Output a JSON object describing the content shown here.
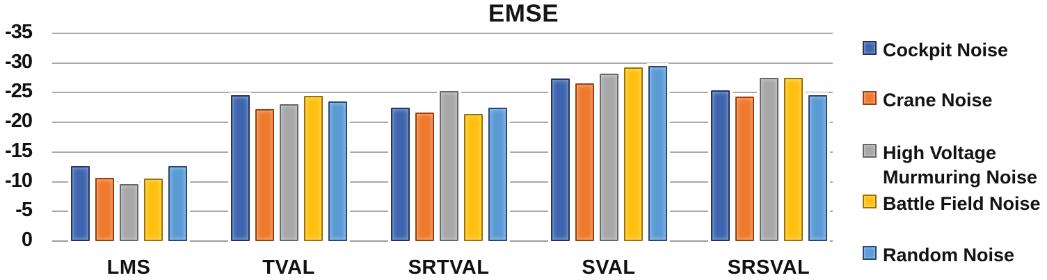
{
  "chart_data": {
    "type": "bar",
    "title": "EMSE",
    "categories": [
      "LMS",
      "TVAL",
      "SRTVAL",
      "SVAL",
      "SRSVAL"
    ],
    "series": [
      {
        "name": "Cockpit Noise",
        "legend_lines": [
          "Cockpit Noise"
        ],
        "fill": "#3E66B0",
        "border": "#20336B",
        "values": [
          -12.6,
          -24.6,
          -22.5,
          -27.4,
          -25.4
        ]
      },
      {
        "name": "Crane Noise",
        "legend_lines": [
          "Crane Noise"
        ],
        "fill": "#EE7A2D",
        "border": "#9E3B12",
        "values": [
          -10.7,
          -22.2,
          -21.6,
          -26.6,
          -24.3
        ]
      },
      {
        "name": "High Voltage Murmuring Noise",
        "legend_lines": [
          "High Voltage",
          "Murmuring Noise"
        ],
        "fill": "#A7A7A7",
        "border": "#686868",
        "values": [
          -9.6,
          -23.1,
          -25.3,
          -28.2,
          -27.5
        ]
      },
      {
        "name": "Battle Field Noise",
        "legend_lines": [
          "Battle Field Noise"
        ],
        "fill": "#FFC010",
        "border": "#9A7400",
        "values": [
          -10.5,
          -24.5,
          -21.4,
          -29.3,
          -27.5
        ]
      },
      {
        "name": "Random Noise",
        "legend_lines": [
          "Random Noise"
        ],
        "fill": "#5B9BD5",
        "border": "#24477E",
        "values": [
          -12.7,
          -23.5,
          -22.5,
          -29.5,
          -24.6
        ]
      }
    ],
    "y_axis": {
      "min": -35,
      "max": 0,
      "tick_step": 5,
      "tick_labels": [
        "-35",
        "-30",
        "-25",
        "-20",
        "-15",
        "-10",
        "-5",
        "0"
      ],
      "inverted": true
    },
    "legend_position": "right",
    "grid_on": true,
    "gridline_color": "#a9a9a9",
    "baseline_color": "#9d9d9d",
    "text_color": "#111111",
    "background_color": "#ffffff"
  }
}
